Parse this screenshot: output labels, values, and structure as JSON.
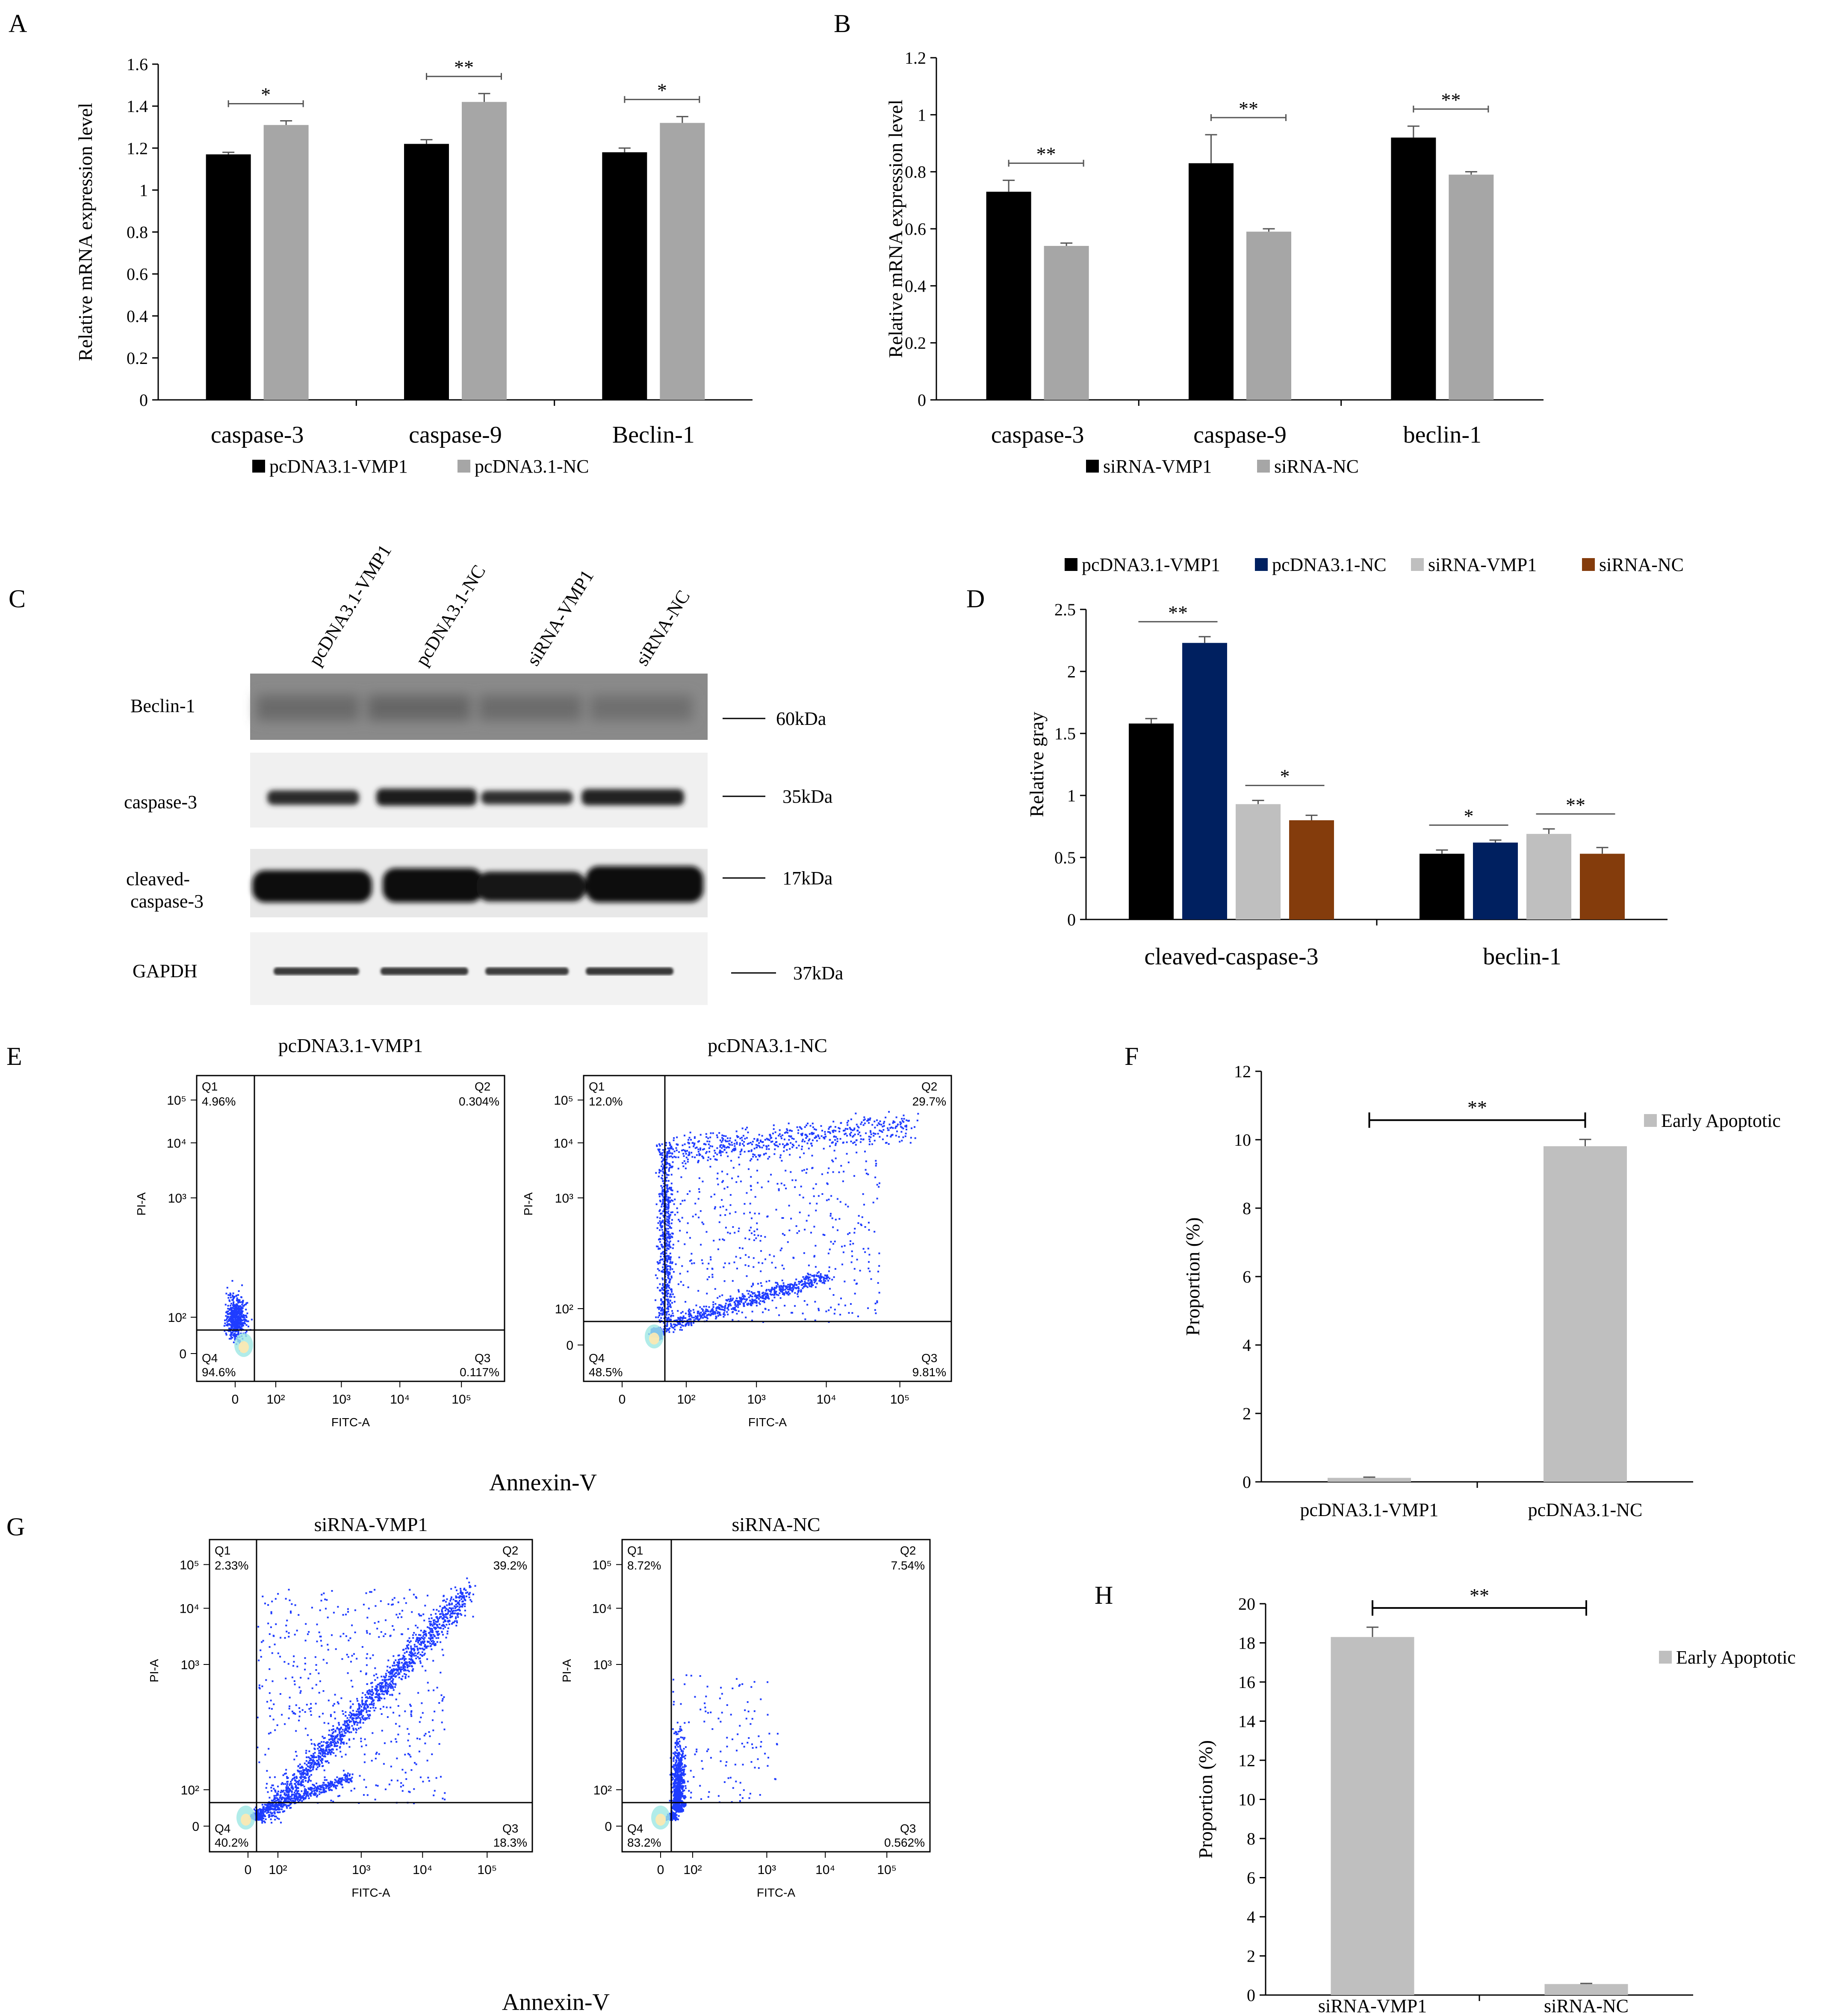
{
  "colors": {
    "black": "#000000",
    "gray": "#a6a6a6",
    "navy": "#002060",
    "lightgray": "#bfbfbf",
    "brown": "#843c0c",
    "dot": "#1f3cff"
  },
  "panels": {
    "A": {
      "label": "A"
    },
    "B": {
      "label": "B"
    },
    "C": {
      "label": "C"
    },
    "D": {
      "label": "D"
    },
    "E": {
      "label": "E"
    },
    "F": {
      "label": "F"
    },
    "G": {
      "label": "G"
    },
    "H": {
      "label": "H"
    }
  },
  "chart_data": [
    {
      "id": "A",
      "type": "bar",
      "ylabel": "Relative mRNA expression level",
      "ylim": [
        0,
        1.6
      ],
      "yticks": [
        "0",
        "0.2",
        "0.4",
        "0.6",
        "0.8",
        "1",
        "1.2",
        "1.4",
        "1.6"
      ],
      "categories": [
        "caspase-3",
        "caspase-9",
        "Beclin-1"
      ],
      "series": [
        {
          "name": "pcDNA3.1-VMP1",
          "color": "#000000",
          "values": [
            1.17,
            1.22,
            1.18
          ],
          "errors": [
            0.01,
            0.02,
            0.02
          ]
        },
        {
          "name": "pcDNA3.1-NC",
          "color": "#a6a6a6",
          "values": [
            1.31,
            1.42,
            1.32
          ],
          "errors": [
            0.02,
            0.04,
            0.03
          ]
        }
      ],
      "significance": [
        "*",
        "**",
        "*"
      ]
    },
    {
      "id": "B",
      "type": "bar",
      "ylabel": "Relative mRNA expression level",
      "ylim": [
        0,
        1.2
      ],
      "yticks": [
        "0",
        "0.2",
        "0.4",
        "0.6",
        "0.8",
        "1",
        "1.2"
      ],
      "categories": [
        "caspase-3",
        "caspase-9",
        "beclin-1"
      ],
      "series": [
        {
          "name": "siRNA-VMP1",
          "color": "#000000",
          "values": [
            0.73,
            0.83,
            0.92
          ],
          "errors": [
            0.04,
            0.1,
            0.04
          ]
        },
        {
          "name": "siRNA-NC",
          "color": "#a6a6a6",
          "values": [
            0.54,
            0.59,
            0.79
          ],
          "errors": [
            0.01,
            0.01,
            0.01
          ]
        }
      ],
      "significance": [
        "**",
        "**",
        "**"
      ]
    },
    {
      "id": "D",
      "type": "bar",
      "ylabel": "Relative gray",
      "ylim": [
        0,
        2.5
      ],
      "yticks": [
        "0",
        "0.5",
        "1",
        "1.5",
        "2",
        "2.5"
      ],
      "categories": [
        "cleaved-caspase-3",
        "beclin-1"
      ],
      "series": [
        {
          "name": "pcDNA3.1-VMP1",
          "color": "#000000",
          "values": [
            1.58,
            0.53
          ],
          "errors": [
            0.04,
            0.03
          ]
        },
        {
          "name": "pcDNA3.1-NC",
          "color": "#002060",
          "values": [
            2.23,
            0.62
          ],
          "errors": [
            0.05,
            0.02
          ]
        },
        {
          "name": "siRNA-VMP1",
          "color": "#bfbfbf",
          "values": [
            0.93,
            0.69
          ],
          "errors": [
            0.03,
            0.04
          ]
        },
        {
          "name": "siRNA-NC",
          "color": "#843c0c",
          "values": [
            0.8,
            0.53
          ],
          "errors": [
            0.04,
            0.05
          ]
        }
      ],
      "significance": [
        [
          "**",
          "*"
        ],
        [
          "*",
          "**"
        ]
      ]
    },
    {
      "id": "F",
      "type": "bar",
      "ylabel": "Proportion (%)",
      "ylim": [
        0,
        12
      ],
      "yticks": [
        "0",
        "2",
        "4",
        "6",
        "8",
        "10",
        "12"
      ],
      "categories": [
        "pcDNA3.1-VMP1",
        "pcDNA3.1-NC"
      ],
      "series": [
        {
          "name": "Early Apoptotic",
          "color": "#bfbfbf",
          "values": [
            0.117,
            9.81
          ],
          "errors": [
            0.02,
            0.2
          ]
        }
      ],
      "significance": [
        "**"
      ]
    },
    {
      "id": "H",
      "type": "bar",
      "ylabel": "Proportion (%)",
      "ylim": [
        0,
        20
      ],
      "yticks": [
        "0",
        "2",
        "4",
        "6",
        "8",
        "10",
        "12",
        "14",
        "16",
        "18",
        "20"
      ],
      "categories": [
        "siRNA-VMP1",
        "siRNA-NC"
      ],
      "series": [
        {
          "name": "Early Apoptotic",
          "color": "#bfbfbf",
          "values": [
            18.3,
            0.562
          ],
          "errors": [
            0.5,
            0.03
          ]
        }
      ],
      "significance": [
        "**"
      ]
    },
    {
      "id": "E-G",
      "type": "scatter",
      "xlabel": "FITC-A",
      "ylabel": "PI-A",
      "xticks": [
        "0",
        "10²",
        "10³",
        "10⁴",
        "10⁵"
      ],
      "yticks": [
        "0",
        "10²",
        "10³",
        "10⁴",
        "10⁵"
      ],
      "axis_caption": "Annexin-V",
      "plots": [
        {
          "title": "pcDNA3.1-VMP1",
          "quadrants": {
            "Q1": "4.96%",
            "Q2": "0.304%",
            "Q3": "0.117%",
            "Q4": "94.6%"
          }
        },
        {
          "title": "pcDNA3.1-NC",
          "quadrants": {
            "Q1": "12.0%",
            "Q2": "29.7%",
            "Q3": "9.81%",
            "Q4": "48.5%"
          }
        },
        {
          "title": "siRNA-VMP1",
          "quadrants": {
            "Q1": "2.33%",
            "Q2": "39.2%",
            "Q3": "18.3%",
            "Q4": "40.2%"
          }
        },
        {
          "title": "siRNA-NC",
          "quadrants": {
            "Q1": "8.72%",
            "Q2": "7.54%",
            "Q3": "0.562%",
            "Q4": "83.2%"
          }
        }
      ]
    }
  ],
  "western_blot": {
    "lanes": [
      "pcDNA3.1-VMP1",
      "pcDNA3.1-NC",
      "siRNA-VMP1",
      "siRNA-NC"
    ],
    "bands": [
      {
        "name": "Beclin-1",
        "size": "60kDa"
      },
      {
        "name": "caspase-3",
        "size": "35kDa"
      },
      {
        "name": "cleaved-\ncaspase-3",
        "size": "17kDa"
      },
      {
        "name": "GAPDH",
        "size": "37kDa"
      }
    ]
  }
}
